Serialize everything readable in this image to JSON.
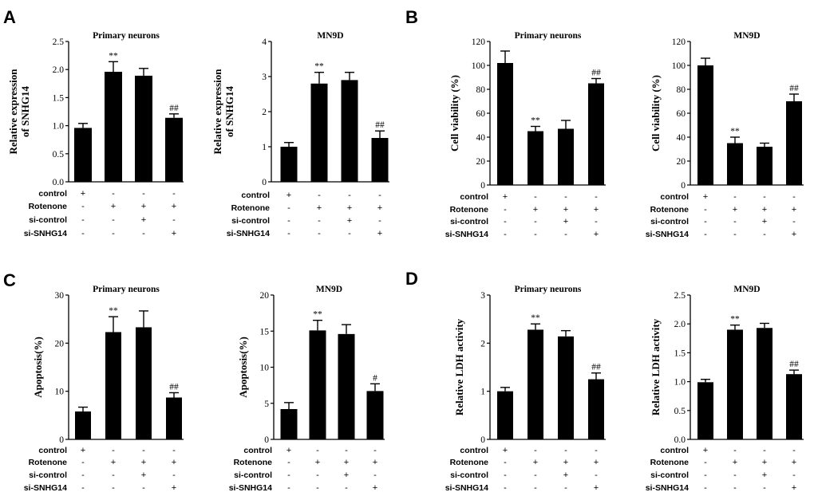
{
  "figure": {
    "panel_letters": [
      "A",
      "B",
      "C",
      "D"
    ],
    "condition_labels": [
      "control",
      "Rotenone",
      "si-control",
      "si-SNHG14"
    ],
    "condition_signs": [
      [
        "+",
        "-",
        "-",
        "-"
      ],
      [
        "-",
        "+",
        "+",
        "+"
      ],
      [
        "-",
        "-",
        "+",
        "-"
      ],
      [
        "-",
        "-",
        "-",
        "+"
      ]
    ]
  },
  "chart_data": [
    {
      "type": "bar",
      "panel": "A",
      "title": "Primary neurons",
      "ylabel": "Relative expression of SNHG14",
      "ylabel_lines": [
        "Relative expression",
        "of SNHG14"
      ],
      "ylim": [
        0,
        2.5
      ],
      "yticks": [
        "0.0",
        "0.5",
        "1.0",
        "1.5",
        "2.0",
        "2.5"
      ],
      "values": [
        0.96,
        1.96,
        1.89,
        1.14
      ],
      "errors": [
        0.08,
        0.18,
        0.13,
        0.07
      ],
      "annotations": [
        "",
        "**",
        "",
        "##"
      ]
    },
    {
      "type": "bar",
      "panel": "A",
      "title": "MN9D",
      "ylabel": "Relative expression of SNHG14",
      "ylabel_lines": [
        "Relative expression",
        "of SNHG14"
      ],
      "ylim": [
        0,
        4
      ],
      "yticks": [
        "0",
        "1",
        "2",
        "3",
        "4"
      ],
      "values": [
        1.0,
        2.8,
        2.9,
        1.25
      ],
      "errors": [
        0.12,
        0.32,
        0.22,
        0.2
      ],
      "annotations": [
        "",
        "**",
        "",
        "##"
      ]
    },
    {
      "type": "bar",
      "panel": "B",
      "title": "Primary neurons",
      "ylabel": "Cell viability (%)",
      "ylabel_lines": [
        "Cell viability (%)"
      ],
      "ylim": [
        0,
        120
      ],
      "yticks": [
        "0",
        "20",
        "40",
        "60",
        "80",
        "100",
        "120"
      ],
      "values": [
        102,
        45,
        47,
        85
      ],
      "errors": [
        10,
        4,
        7,
        4
      ],
      "annotations": [
        "",
        "**",
        "",
        "##"
      ]
    },
    {
      "type": "bar",
      "panel": "B",
      "title": "MN9D",
      "ylabel": "Cell viability (%)",
      "ylabel_lines": [
        "Cell viability (%)"
      ],
      "ylim": [
        0,
        120
      ],
      "yticks": [
        "0",
        "20",
        "40",
        "60",
        "80",
        "100",
        "120"
      ],
      "values": [
        100,
        35,
        32,
        70
      ],
      "errors": [
        6,
        5,
        3,
        6
      ],
      "annotations": [
        "",
        "**",
        "",
        "##"
      ]
    },
    {
      "type": "bar",
      "panel": "C",
      "title": "Primary neurons",
      "ylabel": "Apoptosis(%)",
      "ylabel_lines": [
        "Apoptosis(%)"
      ],
      "ylim": [
        0,
        30
      ],
      "yticks": [
        "0",
        "10",
        "20",
        "30"
      ],
      "values": [
        5.8,
        22.3,
        23.3,
        8.7
      ],
      "errors": [
        0.9,
        3.2,
        3.4,
        1.0
      ],
      "annotations": [
        "",
        "**",
        "",
        "##"
      ]
    },
    {
      "type": "bar",
      "panel": "C",
      "title": "MN9D",
      "ylabel": "Apoptosis(%)",
      "ylabel_lines": [
        "Apoptosis(%)"
      ],
      "ylim": [
        0,
        20
      ],
      "yticks": [
        "0",
        "5",
        "10",
        "15",
        "20"
      ],
      "values": [
        4.2,
        15.1,
        14.6,
        6.7
      ],
      "errors": [
        0.9,
        1.4,
        1.3,
        1.0
      ],
      "annotations": [
        "",
        "**",
        "",
        "#"
      ]
    },
    {
      "type": "bar",
      "panel": "D",
      "title": "Primary neurons",
      "ylabel": "Relative LDH activity",
      "ylabel_lines": [
        "Relative LDH activity"
      ],
      "ylim": [
        0,
        3
      ],
      "yticks": [
        "0",
        "1",
        "2",
        "3"
      ],
      "values": [
        1.0,
        2.28,
        2.14,
        1.25
      ],
      "errors": [
        0.08,
        0.12,
        0.12,
        0.13
      ],
      "annotations": [
        "",
        "**",
        "",
        "##"
      ]
    },
    {
      "type": "bar",
      "panel": "D",
      "title": "MN9D",
      "ylabel": "Relative LDH activity",
      "ylabel_lines": [
        "Relative LDH activity"
      ],
      "ylim": [
        0,
        2.5
      ],
      "yticks": [
        "0.0",
        "0.5",
        "1.0",
        "1.5",
        "2.0",
        "2.5"
      ],
      "values": [
        0.99,
        1.9,
        1.93,
        1.13
      ],
      "errors": [
        0.05,
        0.08,
        0.08,
        0.07
      ],
      "annotations": [
        "",
        "**",
        "",
        "##"
      ]
    }
  ]
}
